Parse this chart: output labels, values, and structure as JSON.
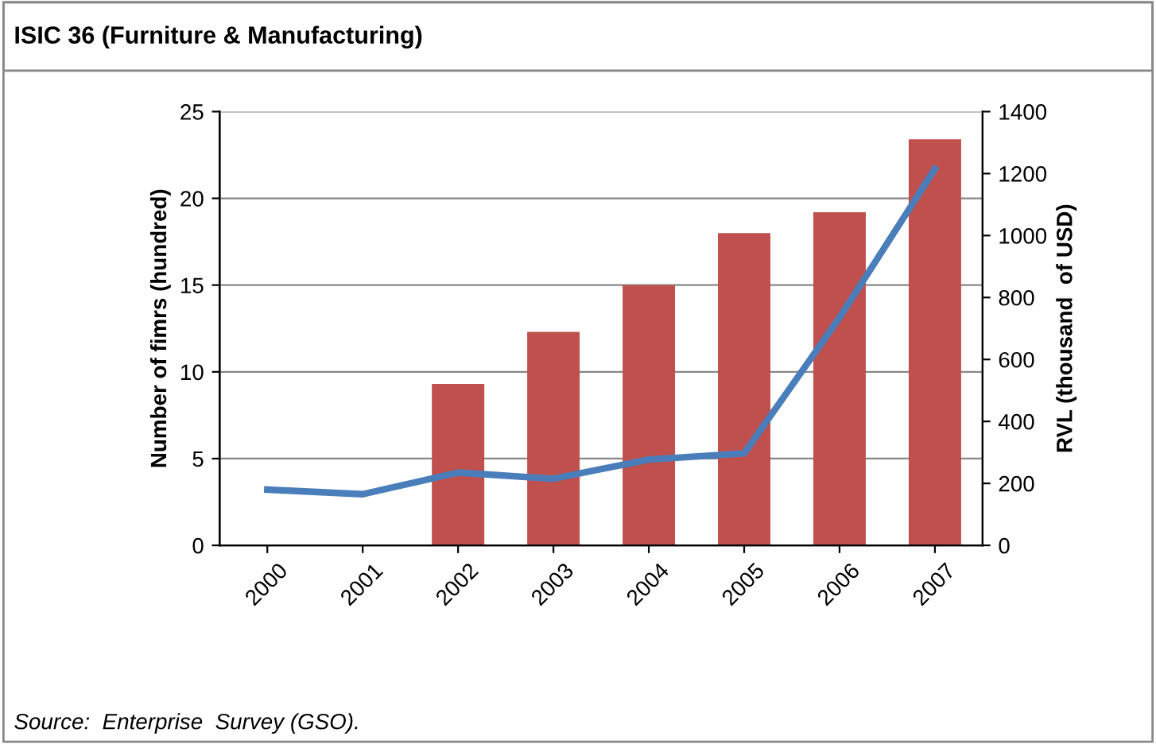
{
  "chart_data": {
    "type": "bar",
    "title": "ISIC 36 (Furniture & Manufacturing)",
    "ylabel": "Number of fimrs (hundred)",
    "y2label": "RVL (thousand  of USD)",
    "categories": [
      "2000",
      "2001",
      "2002",
      "2003",
      "2004",
      "2005",
      "2006",
      "2007"
    ],
    "series": [
      {
        "color": "#c0504d",
        "values": [
          null,
          null,
          9.3,
          12.3,
          15.0,
          18.0,
          19.2,
          23.4
        ]
      },
      {
        "type": "line",
        "axis": "y2",
        "color": "#4a7ebb",
        "values": [
          180,
          165,
          235,
          215,
          277,
          297,
          735,
          1215
        ]
      }
    ],
    "ylim": [
      0,
      25
    ],
    "yticks": [
      0,
      5,
      10,
      15,
      20,
      25
    ],
    "y2lim": [
      0,
      1400
    ],
    "y2ticks": [
      0,
      200,
      400,
      600,
      800,
      1000,
      1200,
      1400
    ],
    "grid": "y",
    "marker": "none",
    "line_style": "solid",
    "annotations": [
      "Source:  Enterprise  Survey (GSO)."
    ]
  }
}
